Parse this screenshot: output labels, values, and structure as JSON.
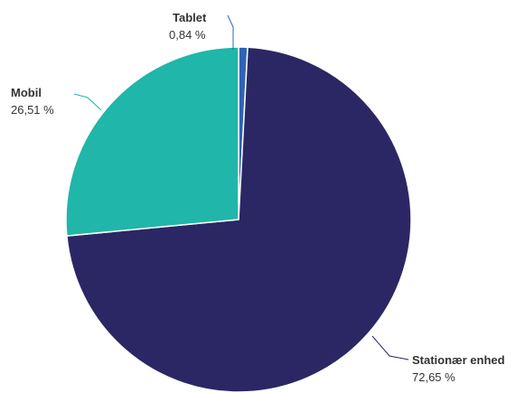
{
  "chart_data": {
    "type": "pie",
    "slices": [
      {
        "label": "Tablet",
        "value": 0.84,
        "value_label": "0,84 %",
        "color": "#2f63b6"
      },
      {
        "label": "Stationær enhed",
        "value": 72.65,
        "value_label": "72,65 %",
        "color": "#2b2764"
      },
      {
        "label": "Mobil",
        "value": 26.51,
        "value_label": "26,51 %",
        "color": "#20b6a9"
      }
    ],
    "start_angle_deg": 0,
    "direction": "clockwise",
    "data_labels": true,
    "legend": "none"
  }
}
